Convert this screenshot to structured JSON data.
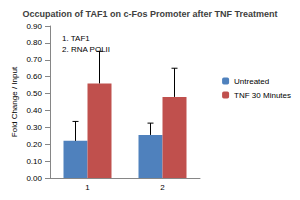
{
  "chart_data": {
    "type": "bar",
    "title": "Occupation of TAF1 on c-Fos Promoter after TNF Treatment",
    "y_label": "Fold Change / Input",
    "annotations": [
      "1. TAF1",
      "2. RNA POLII"
    ],
    "categories": [
      "1",
      "2"
    ],
    "series": [
      {
        "name": "Untreated",
        "color": "#4f81bd",
        "values": [
          0.22,
          0.255
        ],
        "errors": [
          0.115,
          0.07
        ]
      },
      {
        "name": "TNF 30 Minutes",
        "color": "#c0504d",
        "values": [
          0.56,
          0.48
        ],
        "errors": [
          0.19,
          0.17
        ]
      }
    ],
    "ylim": [
      0,
      0.9
    ],
    "yticks": [
      {
        "value": 0,
        "label": "0.00"
      },
      {
        "value": 0.1,
        "label": "0.10"
      },
      {
        "value": 0.2,
        "label": "0.20"
      },
      {
        "value": 0.3,
        "label": "0.30"
      },
      {
        "value": 0.4,
        "label": "0.40"
      },
      {
        "value": 0.5,
        "label": "0.50"
      },
      {
        "value": 0.6,
        "label": "0.60"
      },
      {
        "value": 0.7,
        "label": "0.70"
      },
      {
        "value": 0.8,
        "label": "0.80"
      },
      {
        "value": 0.9,
        "label": "0.90"
      }
    ],
    "grid": false,
    "legend": "right"
  }
}
